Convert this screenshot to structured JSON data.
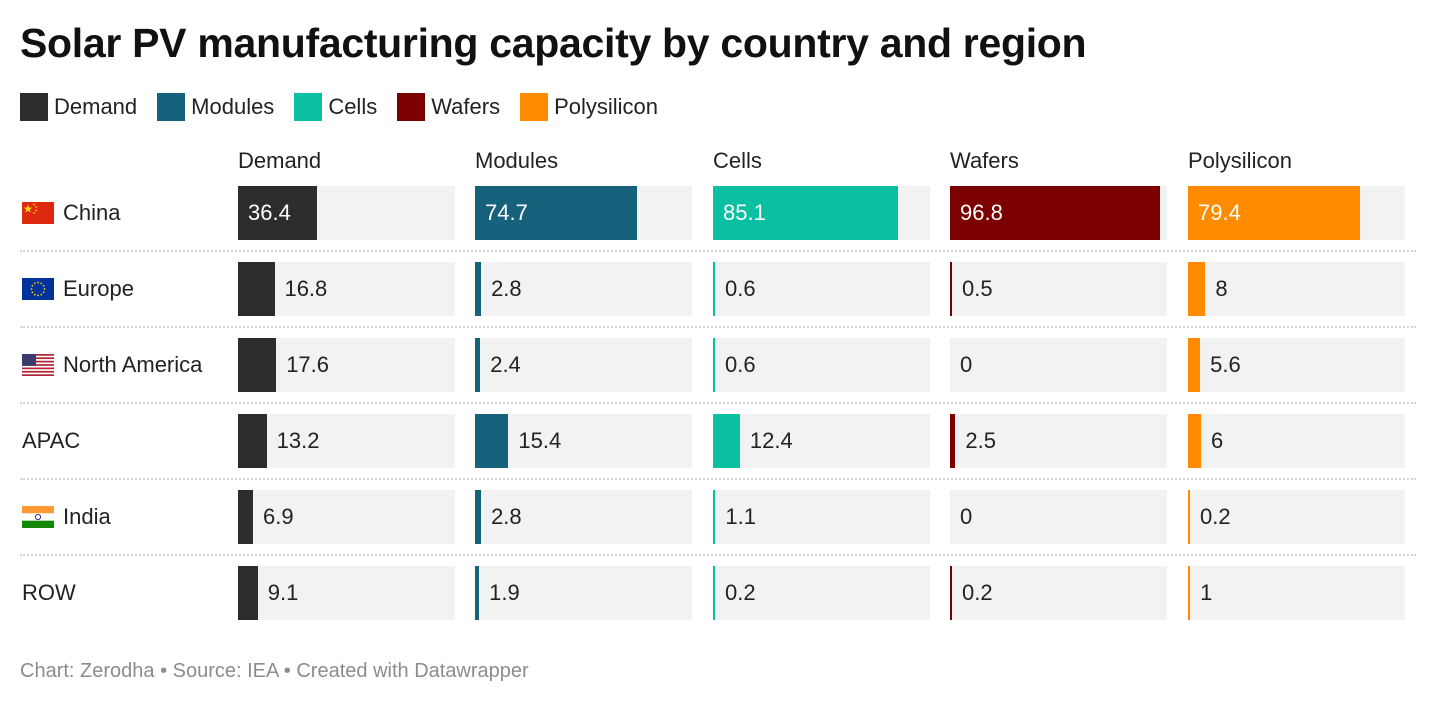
{
  "chart_data": {
    "type": "bar",
    "title": "Solar PV manufacturing capacity by country and region",
    "legend": [
      "Demand",
      "Modules",
      "Cells",
      "Wafers",
      "Polysilicon"
    ],
    "legend_placement": "top-left",
    "categories": [
      "China",
      "Europe",
      "North America",
      "APAC",
      "India",
      "ROW"
    ],
    "series": [
      {
        "name": "Demand",
        "color": "#2d2d2d",
        "values": [
          36.4,
          16.8,
          17.6,
          13.2,
          6.9,
          9.1
        ]
      },
      {
        "name": "Modules",
        "color": "#16627d",
        "values": [
          74.7,
          2.8,
          2.4,
          15.4,
          2.8,
          1.9
        ]
      },
      {
        "name": "Cells",
        "color": "#0bbfa3",
        "values": [
          85.1,
          0.6,
          0.6,
          12.4,
          1.1,
          0.2
        ]
      },
      {
        "name": "Wafers",
        "color": "#7d0000",
        "values": [
          96.8,
          0.5,
          0,
          2.5,
          0,
          0.2
        ]
      },
      {
        "name": "Polysilicon",
        "color": "#ff8c00",
        "values": [
          79.4,
          8,
          5.6,
          6,
          0.2,
          1
        ]
      }
    ],
    "value_labels": [
      [
        "36.4",
        "74.7",
        "85.1",
        "96.8",
        "79.4"
      ],
      [
        "16.8",
        "2.8",
        "0.6",
        "0.5",
        "8"
      ],
      [
        "17.6",
        "2.4",
        "0.6",
        "0",
        "5.6"
      ],
      [
        "13.2",
        "15.4",
        "12.4",
        "2.5",
        "6"
      ],
      [
        "6.9",
        "2.8",
        "1.1",
        "0",
        "0.2"
      ],
      [
        "9.1",
        "1.9",
        "0.2",
        "0.2",
        "1"
      ]
    ],
    "row_flags": [
      "china-flag-icon",
      "eu-flag-icon",
      "us-flag-icon",
      "",
      "india-flag-icon",
      ""
    ],
    "grid": false
  },
  "footer": "Chart: Zerodha • Source: IEA • Created with Datawrapper",
  "colors": {
    "cell_background": "#f2f2f2",
    "separator": "#d4d4d4",
    "footer_text": "#8c8c8c"
  }
}
